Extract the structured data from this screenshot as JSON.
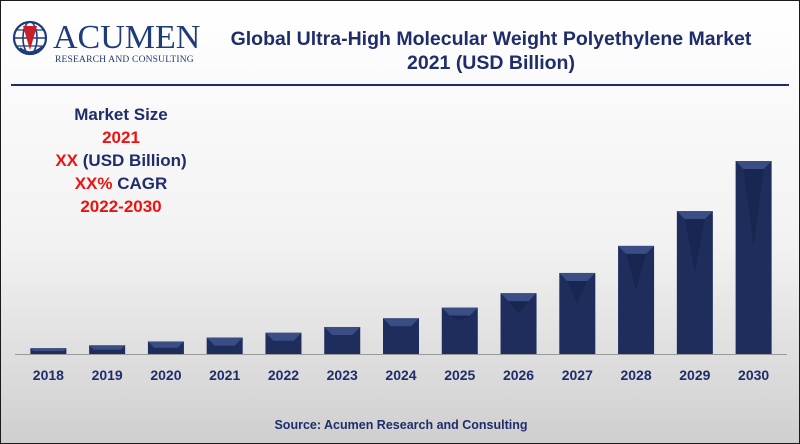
{
  "header": {
    "logo_word": "ACUMEN",
    "logo_sub": "RESEARCH AND CONSULTING",
    "title_line1": "Global Ultra-High Molecular Weight Polyethylene Market",
    "title_line2": "2021 (USD Billion)"
  },
  "market_box": {
    "heading": "Market Size",
    "year": "2021",
    "value_prefix": "XX",
    "value_unit": "(USD Billion)",
    "cagr_prefix": "XX%",
    "cagr_label": "CAGR",
    "period": "2022-2030"
  },
  "footer": {
    "source": "Source: Acumen Research and Consulting"
  },
  "colors": {
    "navy": "#1f2d6b",
    "bar": "#1e2d5c",
    "highlight": "#ee1111"
  },
  "chart_data": {
    "type": "bar",
    "categories": [
      "2018",
      "2019",
      "2020",
      "2021",
      "2022",
      "2023",
      "2024",
      "2025",
      "2026",
      "2027",
      "2028",
      "2029",
      "2030"
    ],
    "values": [
      3,
      4.5,
      6.5,
      8.5,
      11,
      14,
      18.5,
      24,
      31.5,
      42,
      56,
      74,
      100
    ],
    "xlabel": "",
    "ylabel": "",
    "ylim": [
      0,
      100
    ],
    "grid": false,
    "legend": "none"
  }
}
